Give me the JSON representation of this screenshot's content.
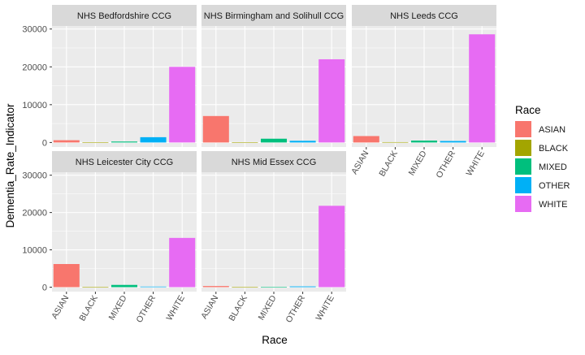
{
  "chart_data": {
    "type": "bar",
    "facet_rows": 2,
    "facet_cols": 3,
    "xlabel": "Race",
    "ylabel": "Dementia_Rate_Indicator",
    "ylim": [
      -1200,
      30800
    ],
    "yticks": [
      0,
      10000,
      20000,
      30000
    ],
    "categories": [
      "ASIAN",
      "BLACK",
      "MIXED",
      "OTHER",
      "WHITE"
    ],
    "legend": {
      "title": "Race",
      "position": "right",
      "entries": [
        {
          "label": "ASIAN",
          "color": "#F8766D"
        },
        {
          "label": "BLACK",
          "color": "#A3A500"
        },
        {
          "label": "MIXED",
          "color": "#00BF7D"
        },
        {
          "label": "OTHER",
          "color": "#00B0F6"
        },
        {
          "label": "WHITE",
          "color": "#E76BF3"
        }
      ]
    },
    "panels": [
      {
        "title": "NHS Bedfordshire CCG",
        "values": [
          600,
          50,
          250,
          1400,
          20000
        ]
      },
      {
        "title": "NHS Birmingham and Solihull CCG",
        "values": [
          7000,
          50,
          1000,
          450,
          22000
        ]
      },
      {
        "title": "NHS Leeds CCG",
        "values": [
          1700,
          100,
          500,
          400,
          28600
        ]
      },
      {
        "title": "NHS Leicester City CCG",
        "values": [
          6200,
          50,
          600,
          150,
          13200
        ]
      },
      {
        "title": "NHS Mid Essex CCG",
        "values": [
          300,
          50,
          80,
          200,
          21800
        ]
      }
    ],
    "grid": true,
    "background": "#EBEBEB",
    "strip_background": "#D9D9D9",
    "gridline_color": "#FFFFFF"
  }
}
